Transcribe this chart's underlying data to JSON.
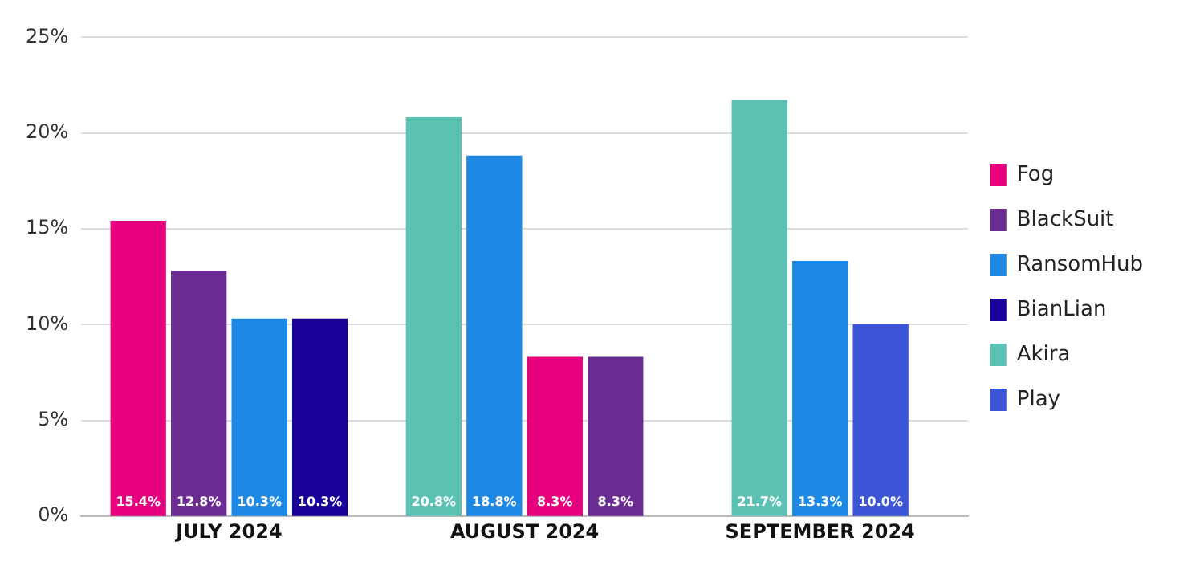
{
  "chart_data": {
    "type": "bar",
    "categories": [
      "JULY 2024",
      "AUGUST 2024",
      "SEPTEMBER 2024"
    ],
    "series": [
      {
        "name": "Fog",
        "color": "#e6007e",
        "x": [
          "JULY 2024",
          "AUGUST 2024"
        ],
        "values": [
          15.4,
          8.3
        ],
        "value_labels": [
          "15.4%",
          "8.3%"
        ]
      },
      {
        "name": "BlackSuit",
        "color": "#6a2c91",
        "x": [
          "JULY 2024",
          "AUGUST 2024"
        ],
        "values": [
          12.8,
          8.3
        ],
        "value_labels": [
          "12.8%",
          "8.3%"
        ]
      },
      {
        "name": "RansomHub",
        "color": "#1e88e5",
        "x": [
          "JULY 2024",
          "AUGUST 2024",
          "SEPTEMBER 2024"
        ],
        "values": [
          10.3,
          18.8,
          13.3
        ],
        "value_labels": [
          "10.3%",
          "18.8%",
          "13.3%"
        ]
      },
      {
        "name": "BianLian",
        "color": "#1a0099",
        "x": [
          "JULY 2024"
        ],
        "values": [
          10.3
        ],
        "value_labels": [
          "10.3%"
        ]
      },
      {
        "name": "Akira",
        "color": "#5bc2b3",
        "x": [
          "AUGUST 2024",
          "SEPTEMBER 2024"
        ],
        "values": [
          20.8,
          21.7
        ],
        "value_labels": [
          "20.8%",
          "21.7%"
        ]
      },
      {
        "name": "Play",
        "color": "#3b55d6",
        "x": [
          "SEPTEMBER 2024"
        ],
        "values": [
          10.0
        ],
        "value_labels": [
          "10.0%"
        ]
      }
    ],
    "ylim": [
      0,
      25
    ],
    "yticks": [
      {
        "value": 0,
        "label": "0%"
      },
      {
        "value": 5,
        "label": "5%"
      },
      {
        "value": 10,
        "label": "10%"
      },
      {
        "value": 15,
        "label": "15%"
      },
      {
        "value": 20,
        "label": "20%"
      },
      {
        "value": 25,
        "label": "25%"
      }
    ],
    "grid": "y",
    "legend": "right"
  }
}
